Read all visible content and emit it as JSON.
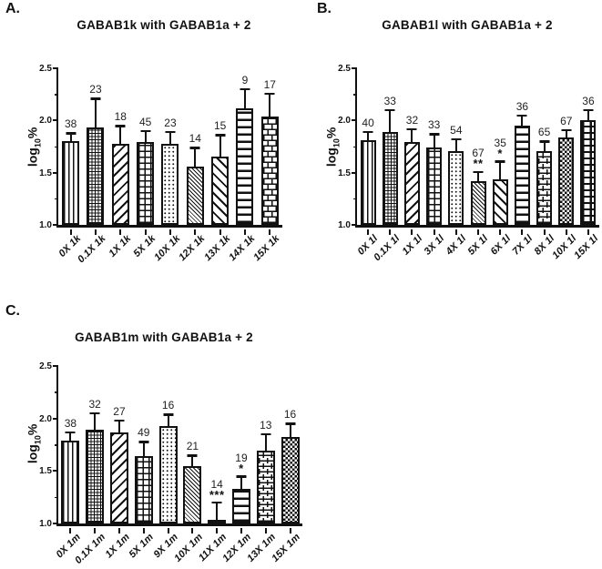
{
  "figure": {
    "background": "#ffffff",
    "ink_color": "#111111"
  },
  "chart_data": [
    {
      "type": "bar",
      "panel_letter": "A.",
      "title": "GABAB1k with GABAB1a + 2",
      "ylabel": "log10%",
      "ylabel_parts": [
        "log",
        "10",
        "%"
      ],
      "ylim": [
        1.0,
        2.5
      ],
      "yticks": [
        "1.0",
        "1.5",
        "2.0",
        "2.5"
      ],
      "yticks_minor": [
        1.25,
        1.75,
        2.25
      ],
      "grid": false,
      "legend": "none",
      "categories": [
        "0X 1k",
        "0.1X 1k",
        "1X 1k",
        "5X 1k",
        "10X 1k",
        "12X 1k",
        "13X 1k",
        "14X 1k",
        "15X 1k"
      ],
      "values": [
        1.8,
        1.93,
        1.78,
        1.79,
        1.78,
        1.56,
        1.65,
        2.12,
        2.04
      ],
      "error_top": [
        1.88,
        2.21,
        1.95,
        1.9,
        1.89,
        1.74,
        1.86,
        2.3,
        2.26
      ],
      "n_labels": [
        "38",
        "23",
        "18",
        "45",
        "23",
        "14",
        "15",
        "9",
        "17"
      ],
      "significance": [
        "",
        "",
        "",
        "",
        "",
        "",
        "",
        "",
        ""
      ],
      "patterns": [
        "vlines",
        "finegrid",
        "diagup",
        "grid",
        "dots",
        "finediag",
        "diagdown",
        "hlines",
        "brick"
      ]
    },
    {
      "type": "bar",
      "panel_letter": "B.",
      "title": "GABAB1l with GABAB1a + 2",
      "ylabel": "log10%",
      "ylabel_parts": [
        "log",
        "10",
        "%"
      ],
      "ylim": [
        1.0,
        2.5
      ],
      "yticks": [
        "1.0",
        "1.5",
        "2.0",
        "2.5"
      ],
      "yticks_minor": [
        1.25,
        1.75,
        2.25
      ],
      "grid": false,
      "legend": "none",
      "categories": [
        "0X 1l",
        "0.1X 1l",
        "1X 1l",
        "3X 1l",
        "4X 1l",
        "5X 1l",
        "6X 1l",
        "7X 1l",
        "8X 1l",
        "10X 1l",
        "15X 1l"
      ],
      "values": [
        1.81,
        1.89,
        1.79,
        1.74,
        1.71,
        1.42,
        1.44,
        1.95,
        1.71,
        1.84,
        2.0
      ],
      "error_top": [
        1.89,
        2.1,
        1.92,
        1.87,
        1.82,
        1.51,
        1.61,
        2.05,
        1.8,
        1.91,
        2.1
      ],
      "n_labels": [
        "40",
        "33",
        "32",
        "33",
        "54",
        "67",
        "35",
        "36",
        "65",
        "67",
        "36"
      ],
      "significance": [
        "",
        "",
        "",
        "",
        "",
        "**",
        "*",
        "",
        "",
        "",
        ""
      ],
      "patterns": [
        "vlines",
        "finegrid",
        "diagup",
        "grid",
        "dots",
        "finediag",
        "diagdown",
        "hlines",
        "brick",
        "checker",
        "thickgrid"
      ]
    },
    {
      "type": "bar",
      "panel_letter": "C.",
      "title": "GABAB1m with GABAB1a + 2",
      "ylabel": "log10%",
      "ylabel_parts": [
        "log",
        "10",
        "%"
      ],
      "ylim": [
        1.0,
        2.5
      ],
      "yticks": [
        "1.0",
        "1.5",
        "2.0",
        "2.5"
      ],
      "yticks_minor": [
        1.25,
        1.75,
        2.25
      ],
      "grid": false,
      "legend": "none",
      "categories": [
        "0X 1m",
        "0.1X 1m",
        "1X 1m",
        "5X 1m",
        "9X 1m",
        "10X 1m",
        "11X 1m",
        "12X 1m",
        "13X 1m",
        "15X 1m"
      ],
      "values": [
        1.79,
        1.89,
        1.87,
        1.64,
        1.93,
        1.55,
        1.02,
        1.33,
        1.69,
        1.82
      ],
      "error_top": [
        1.87,
        2.05,
        1.98,
        1.78,
        2.04,
        1.65,
        1.2,
        1.45,
        1.85,
        1.95
      ],
      "n_labels": [
        "38",
        "32",
        "27",
        "49",
        "16",
        "21",
        "14",
        "19",
        "13",
        "16"
      ],
      "significance": [
        "",
        "",
        "",
        "",
        "",
        "",
        "***",
        "*",
        "",
        ""
      ],
      "patterns": [
        "vlines",
        "finegrid",
        "diagup",
        "grid",
        "dots",
        "finediag",
        "diagdown",
        "hlines",
        "brick",
        "checker"
      ]
    }
  ]
}
